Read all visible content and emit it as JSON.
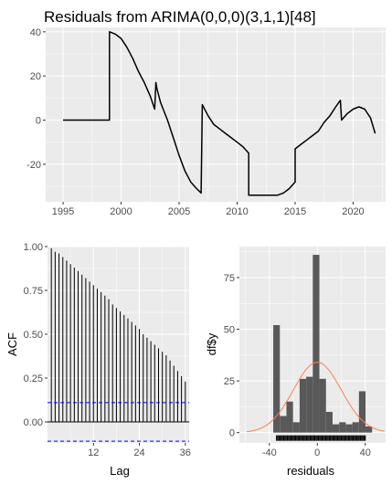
{
  "chart_data": [
    {
      "type": "line",
      "title": "Residuals from ARIMA(0,0,0)(3,1,1)[48]",
      "xlabel": "",
      "ylabel": "",
      "xlim": [
        1993.5,
        2022.8
      ],
      "ylim": [
        -37,
        42
      ],
      "x_ticks": [
        1995,
        2000,
        2005,
        2010,
        2015,
        2020
      ],
      "y_ticks": [
        -20,
        0,
        20,
        40
      ],
      "grid": true,
      "legend": "none",
      "colors": {
        "line": "#000000",
        "panel": "#ebebeb",
        "grid": "#ffffff"
      },
      "series": [
        {
          "x": [
            1995.0,
            1999.0,
            1999.0,
            1999.5,
            2000.0,
            2000.5,
            2001.0,
            2001.5,
            2002.0,
            2002.5,
            2002.9,
            2003.0,
            2003.1,
            2003.4,
            2003.7,
            2004.0,
            2004.5,
            2005.0,
            2005.5,
            2006.0,
            2006.5,
            2006.9,
            2007.0,
            2007.5,
            2008.0,
            2008.5,
            2009.0,
            2009.5,
            2010.0,
            2010.5,
            2011.0,
            2011.0,
            2011.5,
            2012.0,
            2012.5,
            2013.0,
            2013.5,
            2014.0,
            2014.5,
            2015.0,
            2015.0,
            2015.5,
            2016.0,
            2016.5,
            2017.0,
            2017.5,
            2018.0,
            2018.5,
            2018.9,
            2019.0,
            2019.5,
            2020.0,
            2020.5,
            2021.0,
            2021.5,
            2021.9
          ],
          "values": [
            0,
            0,
            40,
            39,
            37,
            33,
            28,
            22,
            17,
            11,
            5,
            17,
            14,
            8,
            4,
            0,
            -8,
            -16,
            -23,
            -28,
            -31,
            -33,
            7,
            2,
            -2,
            -4,
            -6,
            -8,
            -10,
            -12,
            -15,
            -34,
            -34,
            -34,
            -34,
            -34,
            -34,
            -33,
            -31,
            -28,
            -13,
            -11,
            -9,
            -7,
            -5,
            -1,
            2,
            6,
            9,
            0,
            3,
            5,
            6,
            5,
            1,
            -6
          ]
        }
      ]
    },
    {
      "type": "bar",
      "title": "",
      "xlabel": "Lag",
      "ylabel": "ACF",
      "xlim": [
        0,
        37
      ],
      "ylim": [
        -0.12,
        1.0
      ],
      "x_ticks": [
        12,
        24,
        36
      ],
      "y_ticks": [
        0.0,
        0.25,
        0.5,
        0.75,
        1.0
      ],
      "y_tick_labels": [
        "0.00",
        "0.25",
        "0.50",
        "0.75",
        "1.00"
      ],
      "confidence_bounds": [
        0.11,
        -0.11
      ],
      "grid": true,
      "legend": "none",
      "colors": {
        "bars": "#000000",
        "bounds": "#0000ff",
        "zero": "#000000"
      },
      "lags": [
        1,
        2,
        3,
        4,
        5,
        6,
        7,
        8,
        9,
        10,
        11,
        12,
        13,
        14,
        15,
        16,
        17,
        18,
        19,
        20,
        21,
        22,
        23,
        24,
        25,
        26,
        27,
        28,
        29,
        30,
        31,
        32,
        33,
        34,
        35,
        36
      ],
      "values": [
        0.99,
        0.97,
        0.96,
        0.94,
        0.92,
        0.9,
        0.88,
        0.86,
        0.84,
        0.82,
        0.8,
        0.78,
        0.76,
        0.74,
        0.72,
        0.7,
        0.67,
        0.65,
        0.63,
        0.61,
        0.59,
        0.57,
        0.55,
        0.53,
        0.5,
        0.48,
        0.46,
        0.44,
        0.42,
        0.4,
        0.38,
        0.35,
        0.32,
        0.29,
        0.26,
        0.23
      ]
    },
    {
      "type": "bar",
      "title": "",
      "xlabel": "residuals",
      "ylabel": "df$y",
      "xlim": [
        -65,
        57
      ],
      "ylim": [
        -5,
        90
      ],
      "x_ticks": [
        -40,
        0,
        40
      ],
      "y_ticks": [
        0,
        25,
        50,
        75
      ],
      "grid": true,
      "legend": "none",
      "colors": {
        "bars": "#595959",
        "density": "#ff7f50",
        "rug": "#000000"
      },
      "bin_width": 5.5,
      "bin_centers": [
        -34,
        -28.5,
        -23,
        -17.5,
        -12,
        -6.5,
        -1,
        4.5,
        10,
        15.5,
        21,
        26.5,
        32,
        37.5,
        43
      ],
      "counts": [
        52,
        8,
        15,
        5,
        26,
        27,
        86,
        26,
        10,
        4,
        5,
        4,
        5,
        20,
        3
      ],
      "density_mean": 0,
      "density_sd": 20,
      "density_peak": 34,
      "rug": [
        -34,
        -33,
        -32,
        -31,
        -30,
        -29,
        -28,
        -27,
        -26,
        -25,
        -24,
        -23,
        -22,
        -21,
        -20,
        -19,
        -18,
        -17,
        -16,
        -15,
        -14,
        -13,
        -12,
        -11,
        -10,
        -9,
        -8,
        -7,
        -6,
        -5,
        -4,
        -3,
        -2,
        -1,
        0,
        1,
        2,
        3,
        4,
        5,
        6,
        7,
        8,
        9,
        10,
        11,
        12,
        13,
        14,
        15,
        16,
        17,
        18,
        19,
        20,
        21,
        22,
        23,
        24,
        25,
        26,
        27,
        28,
        29,
        30,
        31,
        32,
        33,
        34,
        35,
        36,
        37,
        38,
        39,
        40
      ]
    }
  ]
}
